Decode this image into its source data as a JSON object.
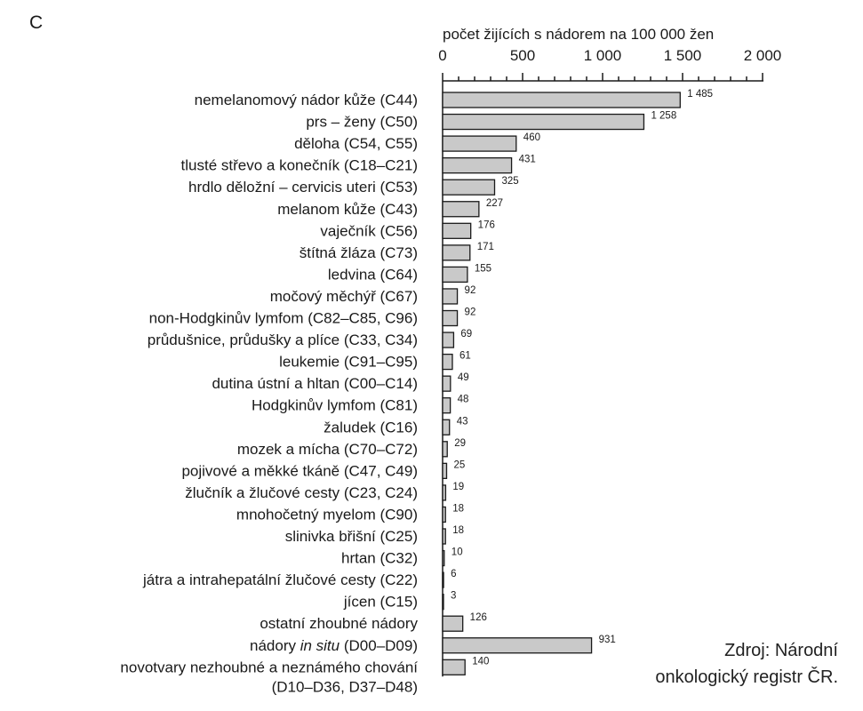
{
  "panel_letter": "C",
  "source_lines": [
    "Zdroj: Národní",
    "onkologický registr ČR."
  ],
  "chart_data": {
    "type": "bar",
    "orientation": "horizontal",
    "xlabel": "počet žijících s nádorem na 100 000 žen",
    "xlim": [
      0,
      2000
    ],
    "xticks": [
      0,
      500,
      1000,
      1500,
      2000
    ],
    "xtick_labels": [
      "0",
      "500",
      "1 000",
      "1 500",
      "2 000"
    ],
    "axis_position": "top",
    "grid": false,
    "categories": [
      [
        "nemelanomový nádor kůže (C44)"
      ],
      [
        "prs – ženy (C50)"
      ],
      [
        "děloha (C54, C55)"
      ],
      [
        "tlusté střevo a konečník (C18–C21)"
      ],
      [
        "hrdlo děložní – cervicis uteri (C53)"
      ],
      [
        "melanom kůže (C43)"
      ],
      [
        "vaječník (C56)"
      ],
      [
        "štítná žláza (C73)"
      ],
      [
        "ledvina (C64)"
      ],
      [
        "močový měchýř (C67)"
      ],
      [
        "non-Hodgkinův lymfom (C82–C85, C96)"
      ],
      [
        "průdušnice, průdušky a plíce (C33, C34)"
      ],
      [
        "leukemie (C91–C95)"
      ],
      [
        "dutina ústní a hltan (C00–C14)"
      ],
      [
        "Hodgkinův lymfom (C81)"
      ],
      [
        "žaludek (C16)"
      ],
      [
        "mozek a mícha (C70–C72)"
      ],
      [
        "pojivové a měkké tkáně (C47, C49)"
      ],
      [
        "žlučník a žlučové cesty (C23, C24)"
      ],
      [
        "mnohočetný myelom (C90)"
      ],
      [
        "slinivka břišní (C25)"
      ],
      [
        "hrtan (C32)"
      ],
      [
        "játra a intrahepatální žlučové cesty (C22)"
      ],
      [
        "jícen (C15)"
      ],
      [
        "ostatní zhoubné nádory"
      ],
      [
        "nádory in situ (D00–D09)"
      ],
      [
        "novotvary nezhoubné a neznámého chování",
        "(D10–D36, D37–D48)"
      ]
    ],
    "values": [
      1485,
      1258,
      460,
      431,
      325,
      227,
      176,
      171,
      155,
      92,
      92,
      69,
      61,
      49,
      48,
      43,
      29,
      25,
      19,
      18,
      18,
      10,
      6,
      3,
      126,
      931,
      140
    ],
    "value_labels": [
      "1 485",
      "1 258",
      "460",
      "431",
      "325",
      "227",
      "176",
      "171",
      "155",
      "92",
      "92",
      "69",
      "61",
      "49",
      "48",
      "43",
      "29",
      "25",
      "19",
      "18",
      "18",
      "10",
      "6",
      "3",
      "126",
      "931",
      "140"
    ],
    "bar_color": "#c9c9c9",
    "edge_color": "#1a1a1a"
  }
}
